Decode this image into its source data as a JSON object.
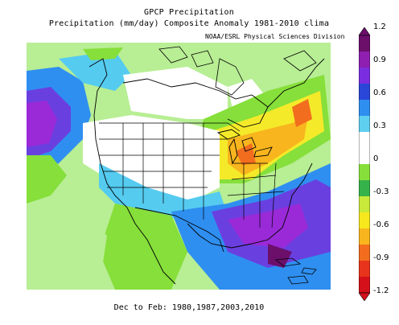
{
  "header": {
    "title": "GPCP Precipitation",
    "subtitle": "Precipitation (mm/day) Composite Anomaly 1981-2010 clima",
    "credit": "NOAA/ESRL Physical Sciences Division"
  },
  "footer": {
    "caption": "Dec to Feb: 1980,1987,2003,2010"
  },
  "colorbar": {
    "labels": [
      "1.2",
      "0.9",
      "0.6",
      "0.3",
      "0",
      "-0.3",
      "-0.6",
      "-0.9",
      "-1.2"
    ],
    "colors": [
      "#6b0f6b",
      "#8e1fb0",
      "#7a2ee0",
      "#2a46d8",
      "#2f8ff0",
      "#5fcff0",
      "#ffffff",
      "#ffffff",
      "#86df3a",
      "#36b24a",
      "#c8e83a",
      "#f7e71d",
      "#f8b51e",
      "#f26d1e",
      "#e8341c",
      "#d4101a"
    ]
  },
  "map": {
    "colors": {
      "ocean_base": "#b8ee94",
      "green": "#86df3a",
      "light_blue": "#55cbf0",
      "blue": "#2f8ff0",
      "violet": "#6a3fe0",
      "purple": "#9a2ad8",
      "yellow": "#f5ea2a",
      "orange": "#f8b51e",
      "red_orange": "#f26d1e",
      "white": "#ffffff"
    }
  }
}
